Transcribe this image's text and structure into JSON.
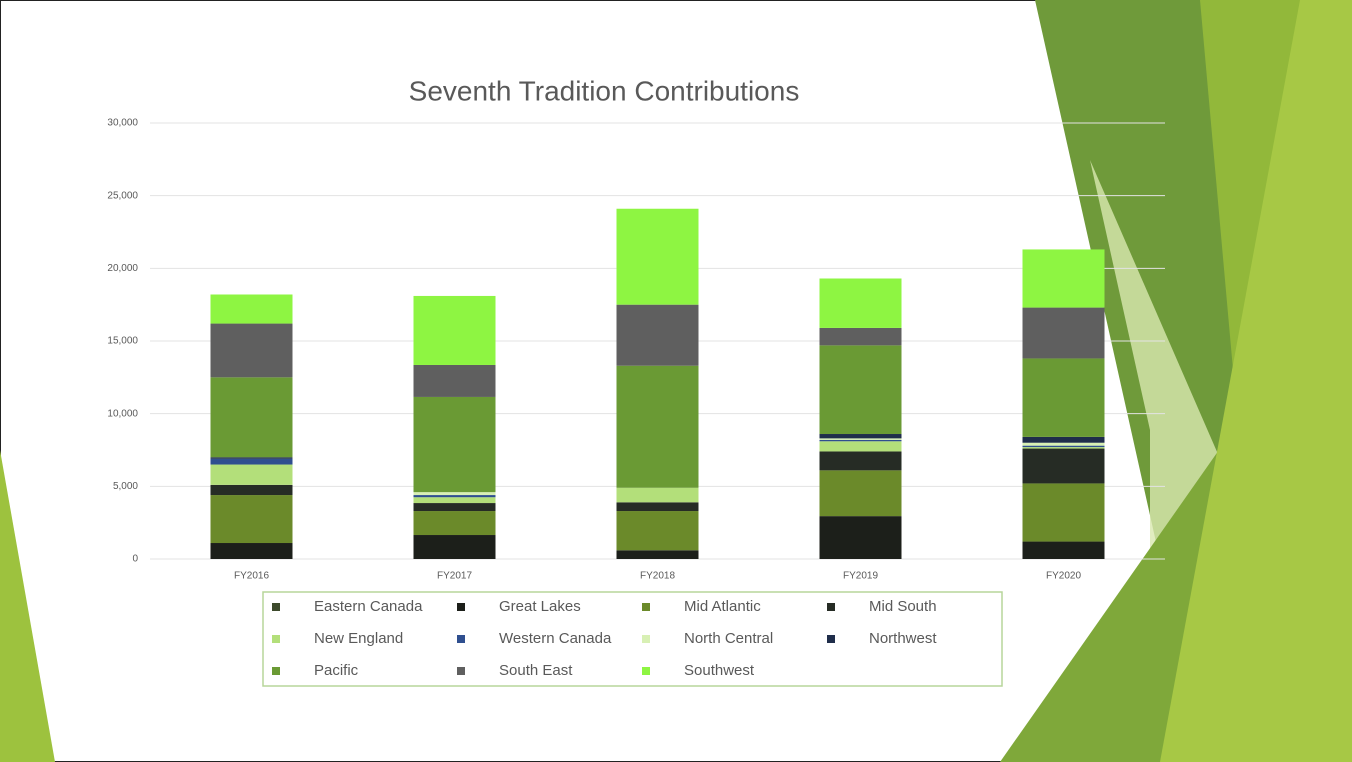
{
  "chart_data": {
    "type": "stacked_bar",
    "title": "Seventh Tradition Contributions",
    "categories": [
      "FY2016",
      "FY2017",
      "FY2018",
      "FY2019",
      "FY2020"
    ],
    "series": [
      {
        "name": "Eastern Canada",
        "color": "#3d4a2c",
        "values": [
          0,
          0,
          0,
          0,
          0
        ]
      },
      {
        "name": "Great Lakes",
        "color": "#1c1f1a",
        "values": [
          1100,
          1650,
          600,
          2950,
          1200
        ]
      },
      {
        "name": "Mid Atlantic",
        "color": "#6b8a2a",
        "values": [
          3300,
          1650,
          2700,
          3150,
          4000
        ]
      },
      {
        "name": "Mid South",
        "color": "#262c25",
        "values": [
          700,
          550,
          600,
          1300,
          2400
        ]
      },
      {
        "name": "New England",
        "color": "#b3df7a",
        "values": [
          1400,
          400,
          1000,
          700,
          100
        ]
      },
      {
        "name": "Western Canada",
        "color": "#2f4f8f",
        "values": [
          400,
          150,
          0,
          100,
          100
        ]
      },
      {
        "name": "North Central",
        "color": "#d8f0b4",
        "values": [
          0,
          200,
          0,
          100,
          200
        ]
      },
      {
        "name": "Northwest",
        "color": "#1f2d4a",
        "values": [
          100,
          0,
          0,
          300,
          400
        ]
      },
      {
        "name": "Pacific",
        "color": "#6a9a34",
        "values": [
          5500,
          6550,
          8400,
          6100,
          5400
        ]
      },
      {
        "name": "South East",
        "color": "#5f5f5f",
        "values": [
          3700,
          2200,
          4200,
          1200,
          3500
        ]
      },
      {
        "name": "Southwest",
        "color": "#8ef542",
        "values": [
          2000,
          4750,
          6600,
          3400,
          4000
        ]
      }
    ],
    "ylim": [
      0,
      30000
    ],
    "yticks": [
      0,
      {
        "value": 5000,
        "label": "5,000"
      },
      {
        "value": 10000,
        "label": "10,000"
      },
      {
        "value": 15000,
        "label": "15,000"
      },
      {
        "value": 20000,
        "label": "20,000"
      },
      {
        "value": 25000,
        "label": "25,000"
      },
      {
        "value": 30000,
        "label": "30,000"
      }
    ],
    "grid": true,
    "legend": "bottom"
  }
}
